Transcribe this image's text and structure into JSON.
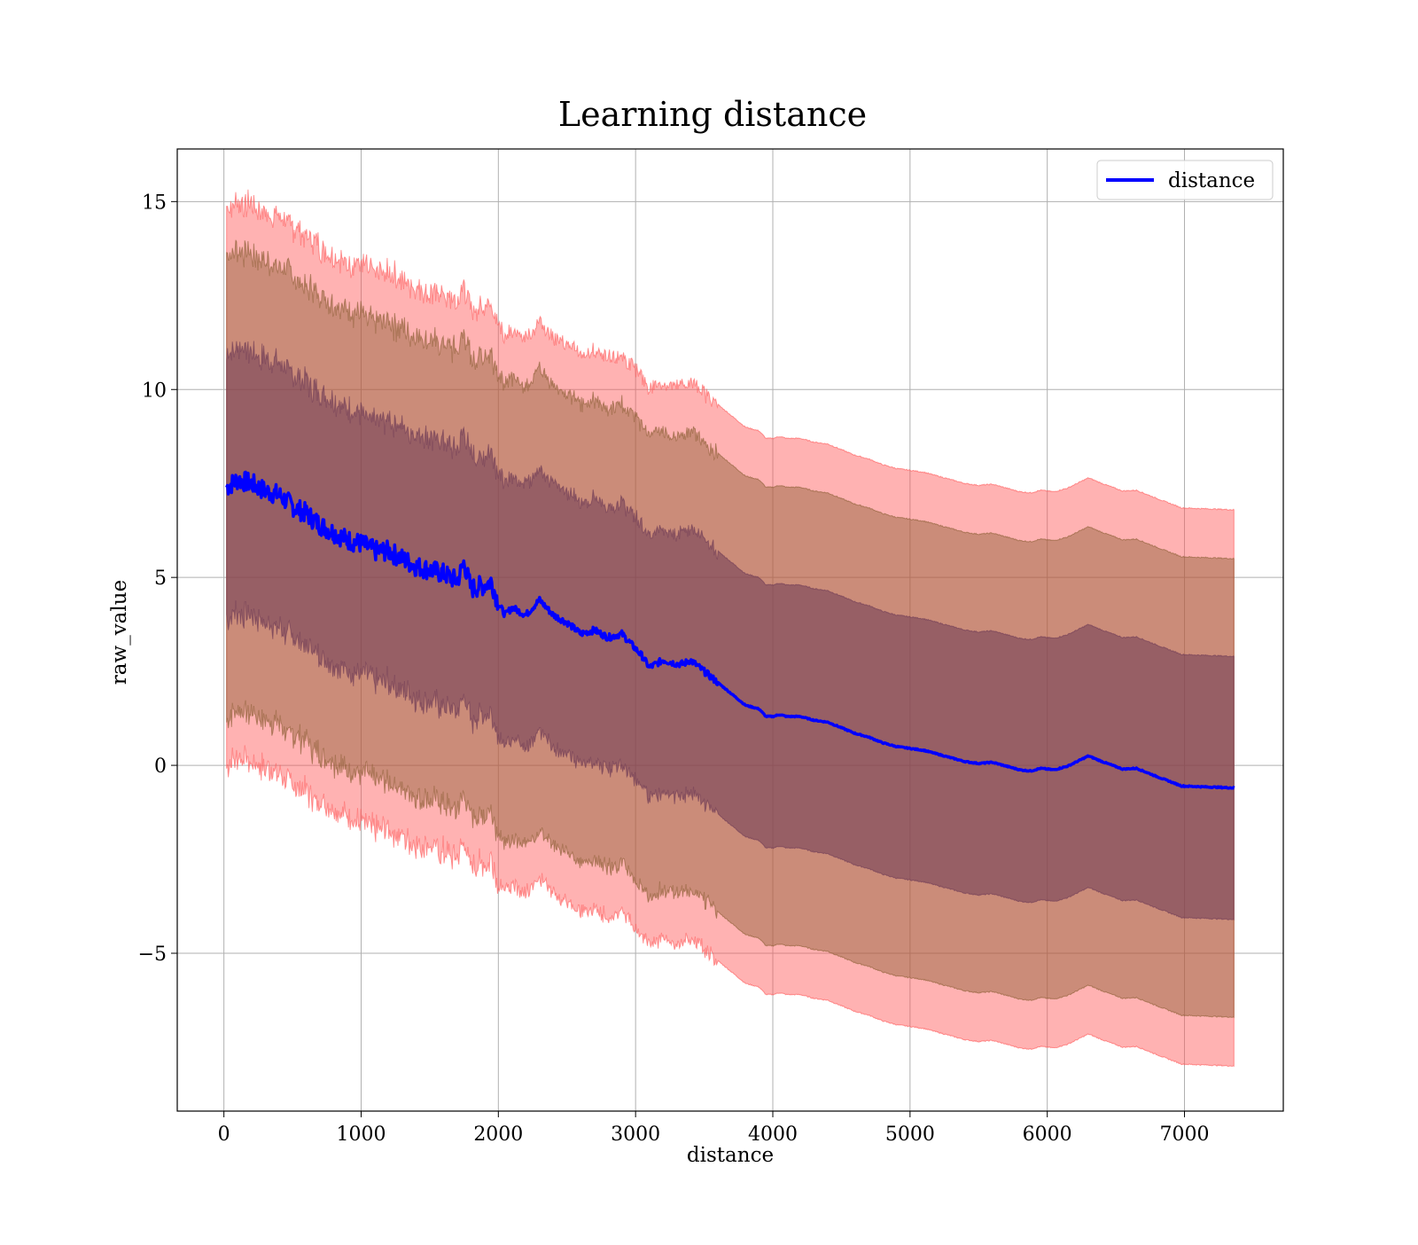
{
  "chart_data": {
    "type": "line",
    "title": "Learning distance",
    "xlabel": "distance",
    "ylabel": "raw_value",
    "xlim": [
      -340,
      7720
    ],
    "ylim": [
      -9.2,
      16.4
    ],
    "xticks": [
      0,
      1000,
      2000,
      3000,
      4000,
      5000,
      6000,
      7000
    ],
    "yticks": [
      -5,
      0,
      5,
      10,
      15
    ],
    "ytick_labels": [
      "−5",
      "0",
      "5",
      "10",
      "15"
    ],
    "grid": true,
    "legend": {
      "position": "top-right",
      "entries": [
        "distance"
      ]
    },
    "series": [
      {
        "name": "distance",
        "color": "#0000ff",
        "x": [
          20,
          100,
          200,
          300,
          400,
          500,
          600,
          700,
          800,
          900,
          1000,
          1100,
          1200,
          1300,
          1400,
          1500,
          1600,
          1700,
          1750,
          1800,
          1900,
          1950,
          2000,
          2050,
          2100,
          2200,
          2300,
          2400,
          2500,
          2600,
          2700,
          2800,
          2900,
          3000,
          3050,
          3100,
          3150,
          3200,
          3300,
          3350,
          3400,
          3500,
          3600,
          3700,
          3800,
          3900,
          3950,
          4000,
          4050,
          4100,
          4200,
          4300,
          4400,
          4500,
          4600,
          4700,
          4800,
          4900,
          5000,
          5100,
          5200,
          5300,
          5400,
          5500,
          5600,
          5700,
          5800,
          5880,
          5950,
          6050,
          6150,
          6300,
          6400,
          6550,
          6650,
          6800,
          6980,
          7360
        ],
        "y": [
          7.4,
          7.6,
          7.5,
          7.3,
          7.2,
          6.9,
          6.7,
          6.4,
          6.2,
          6.0,
          5.9,
          5.7,
          5.7,
          5.5,
          5.3,
          5.2,
          5.1,
          4.9,
          5.4,
          4.7,
          4.8,
          4.9,
          4.3,
          4.0,
          4.2,
          4.0,
          4.4,
          4.0,
          3.8,
          3.5,
          3.6,
          3.4,
          3.5,
          3.1,
          2.9,
          2.6,
          2.7,
          2.8,
          2.7,
          2.7,
          2.8,
          2.5,
          2.2,
          1.9,
          1.6,
          1.5,
          1.3,
          1.3,
          1.35,
          1.3,
          1.3,
          1.2,
          1.15,
          1.0,
          0.85,
          0.75,
          0.6,
          0.5,
          0.45,
          0.4,
          0.3,
          0.2,
          0.1,
          0.05,
          0.08,
          -0.02,
          -0.12,
          -0.15,
          -0.08,
          -0.12,
          -0.02,
          0.25,
          0.1,
          -0.1,
          -0.08,
          -0.3,
          -0.55,
          -0.6
        ]
      }
    ],
    "bands": [
      {
        "name": "",
        "color": "#ff5555",
        "opacity": 0.45,
        "halfwidth_start": 7.4,
        "halfwidth_end": 7.4
      },
      {
        "name": "",
        "color": "#8b5e34",
        "opacity": 0.45,
        "halfwidth_start": 6.1,
        "halfwidth_end": 6.1
      },
      {
        "name": "",
        "color": "#6e3a55",
        "opacity": 0.55,
        "halfwidth_start": 3.5,
        "halfwidth_end": 3.5
      }
    ]
  }
}
